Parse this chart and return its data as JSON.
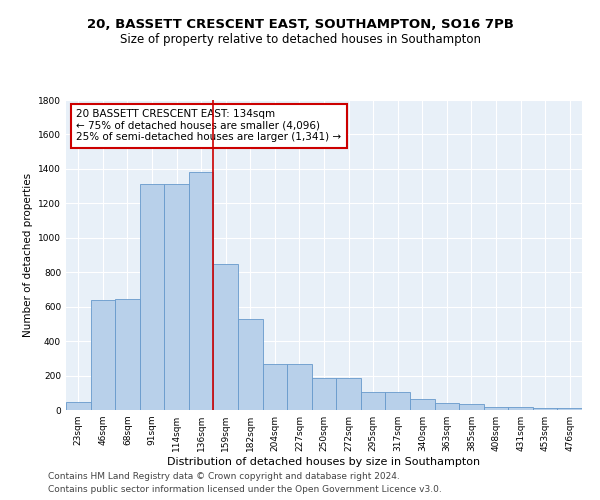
{
  "title1": "20, BASSETT CRESCENT EAST, SOUTHAMPTON, SO16 7PB",
  "title2": "Size of property relative to detached houses in Southampton",
  "xlabel": "Distribution of detached houses by size in Southampton",
  "ylabel": "Number of detached properties",
  "categories": [
    "23sqm",
    "46sqm",
    "68sqm",
    "91sqm",
    "114sqm",
    "136sqm",
    "159sqm",
    "182sqm",
    "204sqm",
    "227sqm",
    "250sqm",
    "272sqm",
    "295sqm",
    "317sqm",
    "340sqm",
    "363sqm",
    "385sqm",
    "408sqm",
    "431sqm",
    "453sqm",
    "476sqm"
  ],
  "values": [
    48,
    640,
    645,
    1310,
    1315,
    1380,
    848,
    530,
    270,
    270,
    185,
    185,
    105,
    105,
    63,
    40,
    35,
    20,
    20,
    12,
    12
  ],
  "bar_color": "#b8d0ea",
  "bar_edge_color": "#6699cc",
  "vline_x": 5.5,
  "vline_color": "#cc0000",
  "annotation_text": "20 BASSETT CRESCENT EAST: 134sqm\n← 75% of detached houses are smaller (4,096)\n25% of semi-detached houses are larger (1,341) →",
  "annotation_box_color": "#cc0000",
  "ylim": [
    0,
    1800
  ],
  "yticks": [
    0,
    200,
    400,
    600,
    800,
    1000,
    1200,
    1400,
    1600,
    1800
  ],
  "bg_color": "#e8f0f8",
  "footer1": "Contains HM Land Registry data © Crown copyright and database right 2024.",
  "footer2": "Contains public sector information licensed under the Open Government Licence v3.0.",
  "title1_fontsize": 9.5,
  "title2_fontsize": 8.5,
  "xlabel_fontsize": 8,
  "ylabel_fontsize": 7.5,
  "tick_fontsize": 6.5,
  "annotation_fontsize": 7.5,
  "footer_fontsize": 6.5
}
